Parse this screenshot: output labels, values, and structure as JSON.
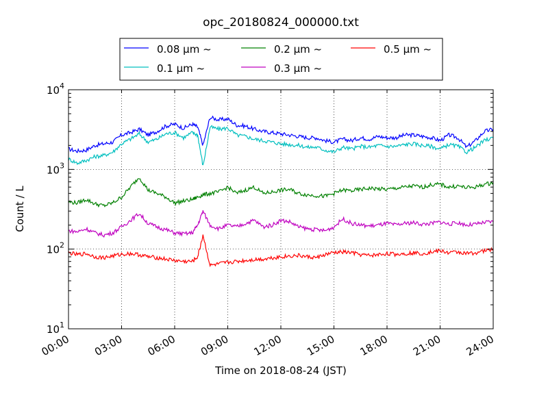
{
  "chart_data": {
    "type": "line",
    "title": "opc_20180824_000000.txt",
    "xlabel": "Time on 2018-08-24 (JST)",
    "ylabel": "Count / L",
    "x_ticks": [
      "00:00",
      "03:00",
      "06:00",
      "09:00",
      "12:00",
      "15:00",
      "18:00",
      "21:00",
      "24:00"
    ],
    "x_range_hours": [
      0,
      24
    ],
    "y_scale": "log",
    "y_ticks": [
      {
        "value": 10,
        "base": "10",
        "exp": "1"
      },
      {
        "value": 100,
        "base": "10",
        "exp": "2"
      },
      {
        "value": 1000,
        "base": "10",
        "exp": "3"
      },
      {
        "value": 10000,
        "base": "10",
        "exp": "4"
      }
    ],
    "ylim": [
      10,
      10000
    ],
    "grid": true,
    "legend_position": "top-center",
    "series": [
      {
        "name": "0.08 μm ~",
        "color": "#0000ff",
        "x": [
          0,
          0.5,
          1,
          1.5,
          2,
          2.5,
          3,
          3.5,
          4,
          4.5,
          5,
          5.5,
          6,
          6.5,
          7,
          7.3,
          7.6,
          8,
          8.5,
          9,
          9.5,
          10,
          10.5,
          11,
          11.5,
          12,
          12.5,
          13,
          13.5,
          14,
          14.5,
          15,
          15.5,
          16,
          16.5,
          17,
          17.5,
          18,
          18.5,
          19,
          19.5,
          20,
          20.5,
          21,
          21.5,
          22,
          22.5,
          23,
          23.5,
          24
        ],
        "y": [
          1800,
          1700,
          1750,
          2000,
          2100,
          2200,
          2700,
          2900,
          3200,
          2700,
          3000,
          3500,
          3700,
          3300,
          3700,
          3400,
          2000,
          4500,
          4200,
          4300,
          3600,
          3500,
          3200,
          3000,
          2900,
          2800,
          2700,
          2600,
          2500,
          2500,
          2300,
          2200,
          2400,
          2300,
          2500,
          2400,
          2600,
          2500,
          2500,
          2700,
          2700,
          2600,
          2500,
          2300,
          2700,
          2500,
          1900,
          2300,
          3000,
          3200
        ]
      },
      {
        "name": "0.1 μm ~",
        "color": "#00bfbf",
        "x": [
          0,
          0.5,
          1,
          1.5,
          2,
          2.5,
          3,
          3.5,
          4,
          4.5,
          5,
          5.5,
          6,
          6.5,
          7,
          7.3,
          7.6,
          8,
          8.5,
          9,
          9.5,
          10,
          10.5,
          11,
          11.5,
          12,
          12.5,
          13,
          13.5,
          14,
          14.5,
          15,
          15.5,
          16,
          16.5,
          17,
          17.5,
          18,
          18.5,
          19,
          19.5,
          20,
          20.5,
          21,
          21.5,
          22,
          22.5,
          23,
          23.5,
          24
        ],
        "y": [
          1350,
          1200,
          1300,
          1450,
          1500,
          1650,
          2100,
          2400,
          2800,
          2200,
          2400,
          2800,
          2900,
          2500,
          2900,
          2700,
          1100,
          3400,
          3200,
          3300,
          2700,
          2600,
          2400,
          2300,
          2200,
          2100,
          2050,
          2000,
          1900,
          1900,
          1750,
          1650,
          1900,
          1800,
          1950,
          1900,
          2000,
          1950,
          1950,
          2050,
          2100,
          2000,
          1950,
          1800,
          2050,
          1950,
          1650,
          1900,
          2300,
          2500
        ]
      },
      {
        "name": "0.2 μm ~",
        "color": "#008000",
        "x": [
          0,
          0.5,
          1,
          1.5,
          2,
          2.5,
          3,
          3.5,
          4,
          4.5,
          5,
          5.5,
          6,
          6.5,
          7,
          7.3,
          7.6,
          8,
          8.5,
          9,
          9.5,
          10,
          10.5,
          11,
          11.5,
          12,
          12.5,
          13,
          13.5,
          14,
          14.5,
          15,
          15.5,
          16,
          16.5,
          17,
          17.5,
          18,
          18.5,
          19,
          19.5,
          20,
          20.5,
          21,
          21.5,
          22,
          22.5,
          23,
          23.5,
          24
        ],
        "y": [
          390,
          380,
          420,
          370,
          350,
          380,
          450,
          600,
          800,
          550,
          500,
          450,
          380,
          400,
          420,
          450,
          480,
          500,
          520,
          600,
          500,
          550,
          600,
          500,
          520,
          550,
          560,
          500,
          480,
          470,
          460,
          500,
          550,
          540,
          560,
          580,
          570,
          560,
          580,
          600,
          620,
          600,
          640,
          650,
          600,
          620,
          590,
          600,
          650,
          680
        ]
      },
      {
        "name": "0.3 μm ~",
        "color": "#bf00bf",
        "x": [
          0,
          0.5,
          1,
          1.5,
          2,
          2.5,
          3,
          3.5,
          4,
          4.5,
          5,
          5.5,
          6,
          6.5,
          7,
          7.3,
          7.6,
          8,
          8.5,
          9,
          9.5,
          10,
          10.5,
          11,
          11.5,
          12,
          12.5,
          13,
          13.5,
          14,
          14.5,
          15,
          15.5,
          16,
          16.5,
          17,
          17.5,
          18,
          18.5,
          19,
          19.5,
          20,
          20.5,
          21,
          21.5,
          22,
          22.5,
          23,
          23.5,
          24
        ],
        "y": [
          170,
          165,
          180,
          160,
          150,
          160,
          190,
          230,
          280,
          210,
          190,
          175,
          160,
          155,
          160,
          200,
          300,
          200,
          180,
          200,
          190,
          210,
          230,
          190,
          200,
          230,
          220,
          190,
          180,
          175,
          170,
          190,
          240,
          210,
          200,
          195,
          200,
          210,
          200,
          210,
          215,
          205,
          210,
          220,
          205,
          215,
          200,
          205,
          215,
          220
        ]
      },
      {
        "name": "0.5 μm ~",
        "color": "#ff0000",
        "x": [
          0,
          0.5,
          1,
          1.5,
          2,
          2.5,
          3,
          3.5,
          4,
          4.5,
          5,
          5.5,
          6,
          6.5,
          7,
          7.3,
          7.6,
          8,
          8.5,
          9,
          9.5,
          10,
          10.5,
          11,
          11.5,
          12,
          12.5,
          13,
          13.5,
          14,
          14.5,
          15,
          15.5,
          16,
          16.5,
          17,
          17.5,
          18,
          18.5,
          19,
          19.5,
          20,
          20.5,
          21,
          21.5,
          22,
          22.5,
          23,
          23.5,
          24
        ],
        "y": [
          90,
          85,
          88,
          80,
          78,
          82,
          86,
          88,
          85,
          80,
          78,
          75,
          72,
          70,
          70,
          80,
          150,
          62,
          65,
          68,
          70,
          72,
          74,
          75,
          78,
          80,
          82,
          83,
          80,
          78,
          85,
          90,
          92,
          90,
          85,
          83,
          85,
          88,
          86,
          88,
          90,
          88,
          92,
          95,
          90,
          92,
          88,
          90,
          95,
          100
        ]
      }
    ]
  }
}
